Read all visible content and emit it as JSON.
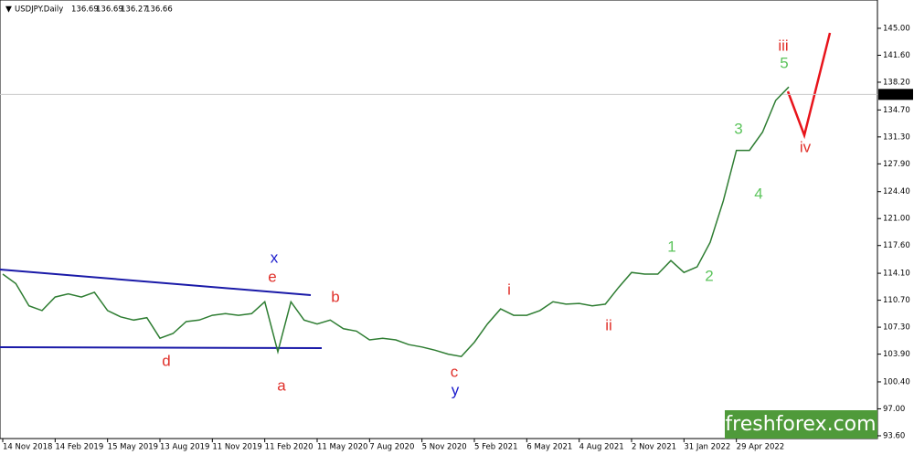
{
  "chart_data": {
    "type": "line",
    "title": "USDJPY.Daily",
    "ohlc": [
      136.69,
      136.69,
      136.27,
      136.66
    ],
    "categories": [
      "14 Nov 2018",
      null,
      null,
      null,
      "14 Feb 2019",
      null,
      null,
      null,
      "15 May 2019",
      null,
      null,
      null,
      "13 Aug 2019",
      null,
      null,
      null,
      "11 Nov 2019",
      null,
      null,
      null,
      "11 Feb 2020",
      null,
      null,
      null,
      "11 May 2020",
      null,
      null,
      null,
      "7 Aug 2020",
      null,
      null,
      null,
      "5 Nov 2020",
      null,
      null,
      null,
      "5 Feb 2021",
      null,
      null,
      null,
      "6 May 2021",
      null,
      null,
      null,
      "4 Aug 2021",
      null,
      null,
      null,
      "2 Nov 2021",
      null,
      null,
      null,
      "31 Jan 2022",
      null,
      null,
      null,
      "29 Apr 2022",
      null,
      null,
      null,
      null
    ],
    "values": [
      114.0,
      112.8,
      110.0,
      109.4,
      111.1,
      111.5,
      111.1,
      111.7,
      109.4,
      108.6,
      108.2,
      108.5,
      105.9,
      106.5,
      108.0,
      108.2,
      108.8,
      109.0,
      108.8,
      109.0,
      110.5,
      104.2,
      110.5,
      108.2,
      107.7,
      108.2,
      107.1,
      106.8,
      105.7,
      105.9,
      105.7,
      105.1,
      104.8,
      104.4,
      103.9,
      103.6,
      105.4,
      107.7,
      109.6,
      108.8,
      108.8,
      109.4,
      110.5,
      110.2,
      110.3,
      110.0,
      110.2,
      112.3,
      114.2,
      114.0,
      114.0,
      115.7,
      114.2,
      114.9,
      118.0,
      123.2,
      129.6,
      129.6,
      131.9,
      135.9,
      137.6
    ],
    "color": "#2e7d32",
    "ylim": [
      93.25,
      148.57
    ],
    "yticks": [
      {
        "value": 145,
        "label": "145.00"
      },
      {
        "value": 141.6,
        "label": "141.60"
      },
      {
        "value": 138.2,
        "label": "138.20"
      },
      {
        "value": 134.7,
        "label": "134.70"
      },
      {
        "value": 131.3,
        "label": "131.30"
      },
      {
        "value": 127.9,
        "label": "127.90"
      },
      {
        "value": 124.4,
        "label": "124.40"
      },
      {
        "value": 121,
        "label": "121.00"
      },
      {
        "value": 117.6,
        "label": "117.60"
      },
      {
        "value": 114.1,
        "label": "114.10"
      },
      {
        "value": 110.7,
        "label": "110.70"
      },
      {
        "value": 107.3,
        "label": "107.30"
      },
      {
        "value": 103.9,
        "label": "103.90"
      },
      {
        "value": 100.4,
        "label": "100.40"
      },
      {
        "value": 97,
        "label": "97.00"
      },
      {
        "value": 93.6,
        "label": "93.60"
      }
    ],
    "last_price": 136.66,
    "wave_labels": [
      {
        "text": "x",
        "color": "#1a1acc"
      },
      {
        "text": "e",
        "color": "#e0302a"
      },
      {
        "text": "d",
        "color": "#e0302a"
      },
      {
        "text": "a",
        "color": "#e0302a"
      },
      {
        "text": "b",
        "color": "#e0302a"
      },
      {
        "text": "c",
        "color": "#e0302a"
      },
      {
        "text": "y",
        "color": "#1a1acc"
      },
      {
        "text": "i",
        "color": "#e0302a"
      },
      {
        "text": "ii",
        "color": "#e0302a"
      },
      {
        "text": "1",
        "color": "#5cc45c"
      },
      {
        "text": "2",
        "color": "#5cc45c"
      },
      {
        "text": "3",
        "color": "#5cc45c"
      },
      {
        "text": "4",
        "color": "#5cc45c"
      },
      {
        "text": "5",
        "color": "#5cc45c"
      },
      {
        "text": "iii",
        "color": "#e0302a"
      },
      {
        "text": "iv",
        "color": "#e0302a"
      }
    ],
    "watermark": "freshforex.com"
  }
}
